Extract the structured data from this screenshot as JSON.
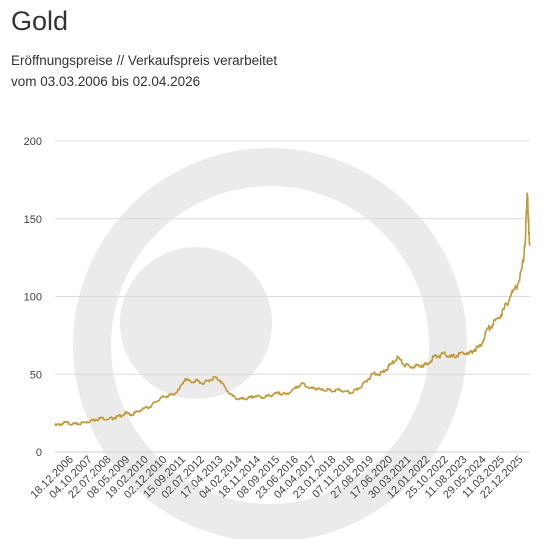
{
  "title": "Gold",
  "subtitle": "Eröffnungspreise // Verkaufspreis verarbeitet",
  "date_range": "vom 03.03.2006 bis 02.04.2026",
  "colors": {
    "line": "#c09a3c",
    "grid": "#dcdcdc",
    "watermark": "#ebebeb",
    "text": "#444444"
  },
  "chart_data": {
    "type": "line",
    "title": "Gold",
    "xlabel": "",
    "ylabel": "",
    "ylim": [
      0,
      200
    ],
    "yticks": [
      0,
      50,
      100,
      150,
      200
    ],
    "xlim": [
      "03.03.2006",
      "02.04.2026"
    ],
    "xticks": [
      "18.12.2006",
      "04.10.2007",
      "22.07.2008",
      "08.05.2009",
      "19.02.2010",
      "02.12.2010",
      "15.09.2011",
      "02.07.2012",
      "17.04.2013",
      "04.02.2014",
      "18.11.2014",
      "08.09.2015",
      "23.06.2016",
      "04.04.2017",
      "23.01.2018",
      "07.11.2018",
      "27.08.2019",
      "17.06.2020",
      "30.03.2021",
      "12.01.2022",
      "25.10.2022",
      "11.08.2023",
      "29.05.2024",
      "11.03.2025",
      "22.12.2025"
    ],
    "grid": true,
    "legend": "none",
    "series": [
      {
        "x": [
          "03.03.2006",
          "01.06.2006",
          "01.09.2006",
          "01.12.2006",
          "01.03.2007",
          "01.06.2007",
          "01.09.2007",
          "01.12.2007",
          "01.03.2008",
          "01.06.2008",
          "01.09.2008",
          "01.12.2008",
          "01.03.2009",
          "01.06.2009",
          "01.09.2009",
          "01.12.2009",
          "01.03.2010",
          "01.06.2010",
          "01.09.2010",
          "01.12.2010",
          "01.03.2011",
          "01.06.2011",
          "01.09.2011",
          "01.12.2011",
          "01.03.2012",
          "01.06.2012",
          "01.09.2012",
          "01.12.2012",
          "01.03.2013",
          "01.06.2013",
          "01.09.2013",
          "01.12.2013",
          "01.03.2014",
          "01.06.2014",
          "01.09.2014",
          "01.12.2014",
          "01.03.2015",
          "01.06.2015",
          "01.09.2015",
          "01.12.2015",
          "01.03.2016",
          "01.06.2016",
          "01.09.2016",
          "01.12.2016",
          "01.03.2017",
          "01.06.2017",
          "01.09.2017",
          "01.12.2017",
          "01.03.2018",
          "01.06.2018",
          "01.09.2018",
          "01.12.2018",
          "01.03.2019",
          "01.06.2019",
          "01.09.2019",
          "01.12.2019",
          "01.03.2020",
          "01.06.2020",
          "01.09.2020",
          "01.12.2020",
          "01.03.2021",
          "01.06.2021",
          "01.09.2021",
          "01.12.2021",
          "01.03.2022",
          "01.06.2022",
          "01.09.2022",
          "01.12.2022",
          "01.03.2023",
          "01.06.2023",
          "01.09.2023",
          "01.12.2023",
          "01.03.2024",
          "01.06.2024",
          "01.09.2024",
          "01.12.2024",
          "01.03.2025",
          "01.06.2025",
          "01.09.2025",
          "01.12.2025",
          "01.01.2026",
          "15.01.2026",
          "01.02.2026",
          "15.02.2026",
          "01.03.2026",
          "15.03.2026",
          "02.04.2026"
        ],
        "values": [
          17,
          18,
          19,
          18,
          18,
          19,
          20,
          21,
          22,
          21,
          22,
          23,
          25,
          24,
          26,
          28,
          29,
          32,
          35,
          36,
          37,
          40,
          47,
          45,
          46,
          44,
          46,
          48,
          46,
          40,
          36,
          34,
          34,
          35,
          36,
          35,
          36,
          37,
          38,
          37,
          39,
          42,
          44,
          41,
          41,
          40,
          40,
          39,
          40,
          39,
          38,
          40,
          43,
          47,
          51,
          50,
          53,
          57,
          61,
          56,
          55,
          55,
          56,
          56,
          61,
          62,
          63,
          61,
          62,
          64,
          63,
          66,
          68,
          78,
          82,
          86,
          92,
          100,
          106,
          118,
          128,
          133,
          150,
          164,
          160,
          140,
          134
        ]
      }
    ]
  }
}
